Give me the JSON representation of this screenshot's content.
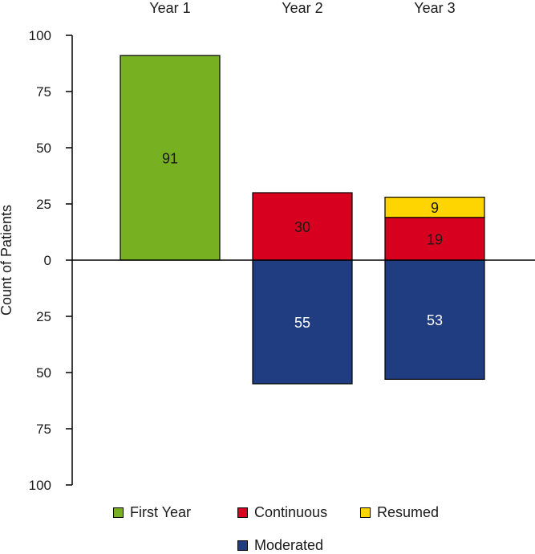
{
  "chart_data": {
    "type": "bar",
    "subtype": "diverging-stacked",
    "categories": [
      "Year 1",
      "Year 2",
      "Year 3"
    ],
    "ylabel": "Count of Patients",
    "ylim": [
      -100,
      100
    ],
    "yticks": [
      100,
      75,
      50,
      25,
      0,
      25,
      50,
      75,
      100
    ],
    "grid": false,
    "legend_position": "bottom",
    "series": [
      {
        "name": "First Year",
        "direction": "up",
        "color": "#77b020",
        "values": [
          91,
          0,
          0
        ],
        "label_color": "#1a1a1a"
      },
      {
        "name": "Continuous",
        "direction": "up",
        "color": "#d8001f",
        "values": [
          0,
          30,
          19
        ],
        "label_color": "#1a1a1a"
      },
      {
        "name": "Resumed",
        "direction": "up",
        "color": "#ffd500",
        "values": [
          0,
          0,
          9
        ],
        "label_color": "#1a1a1a"
      },
      {
        "name": "Moderated",
        "direction": "down",
        "color": "#203d82",
        "values": [
          0,
          55,
          53
        ],
        "label_color": "#ffffff"
      }
    ]
  }
}
